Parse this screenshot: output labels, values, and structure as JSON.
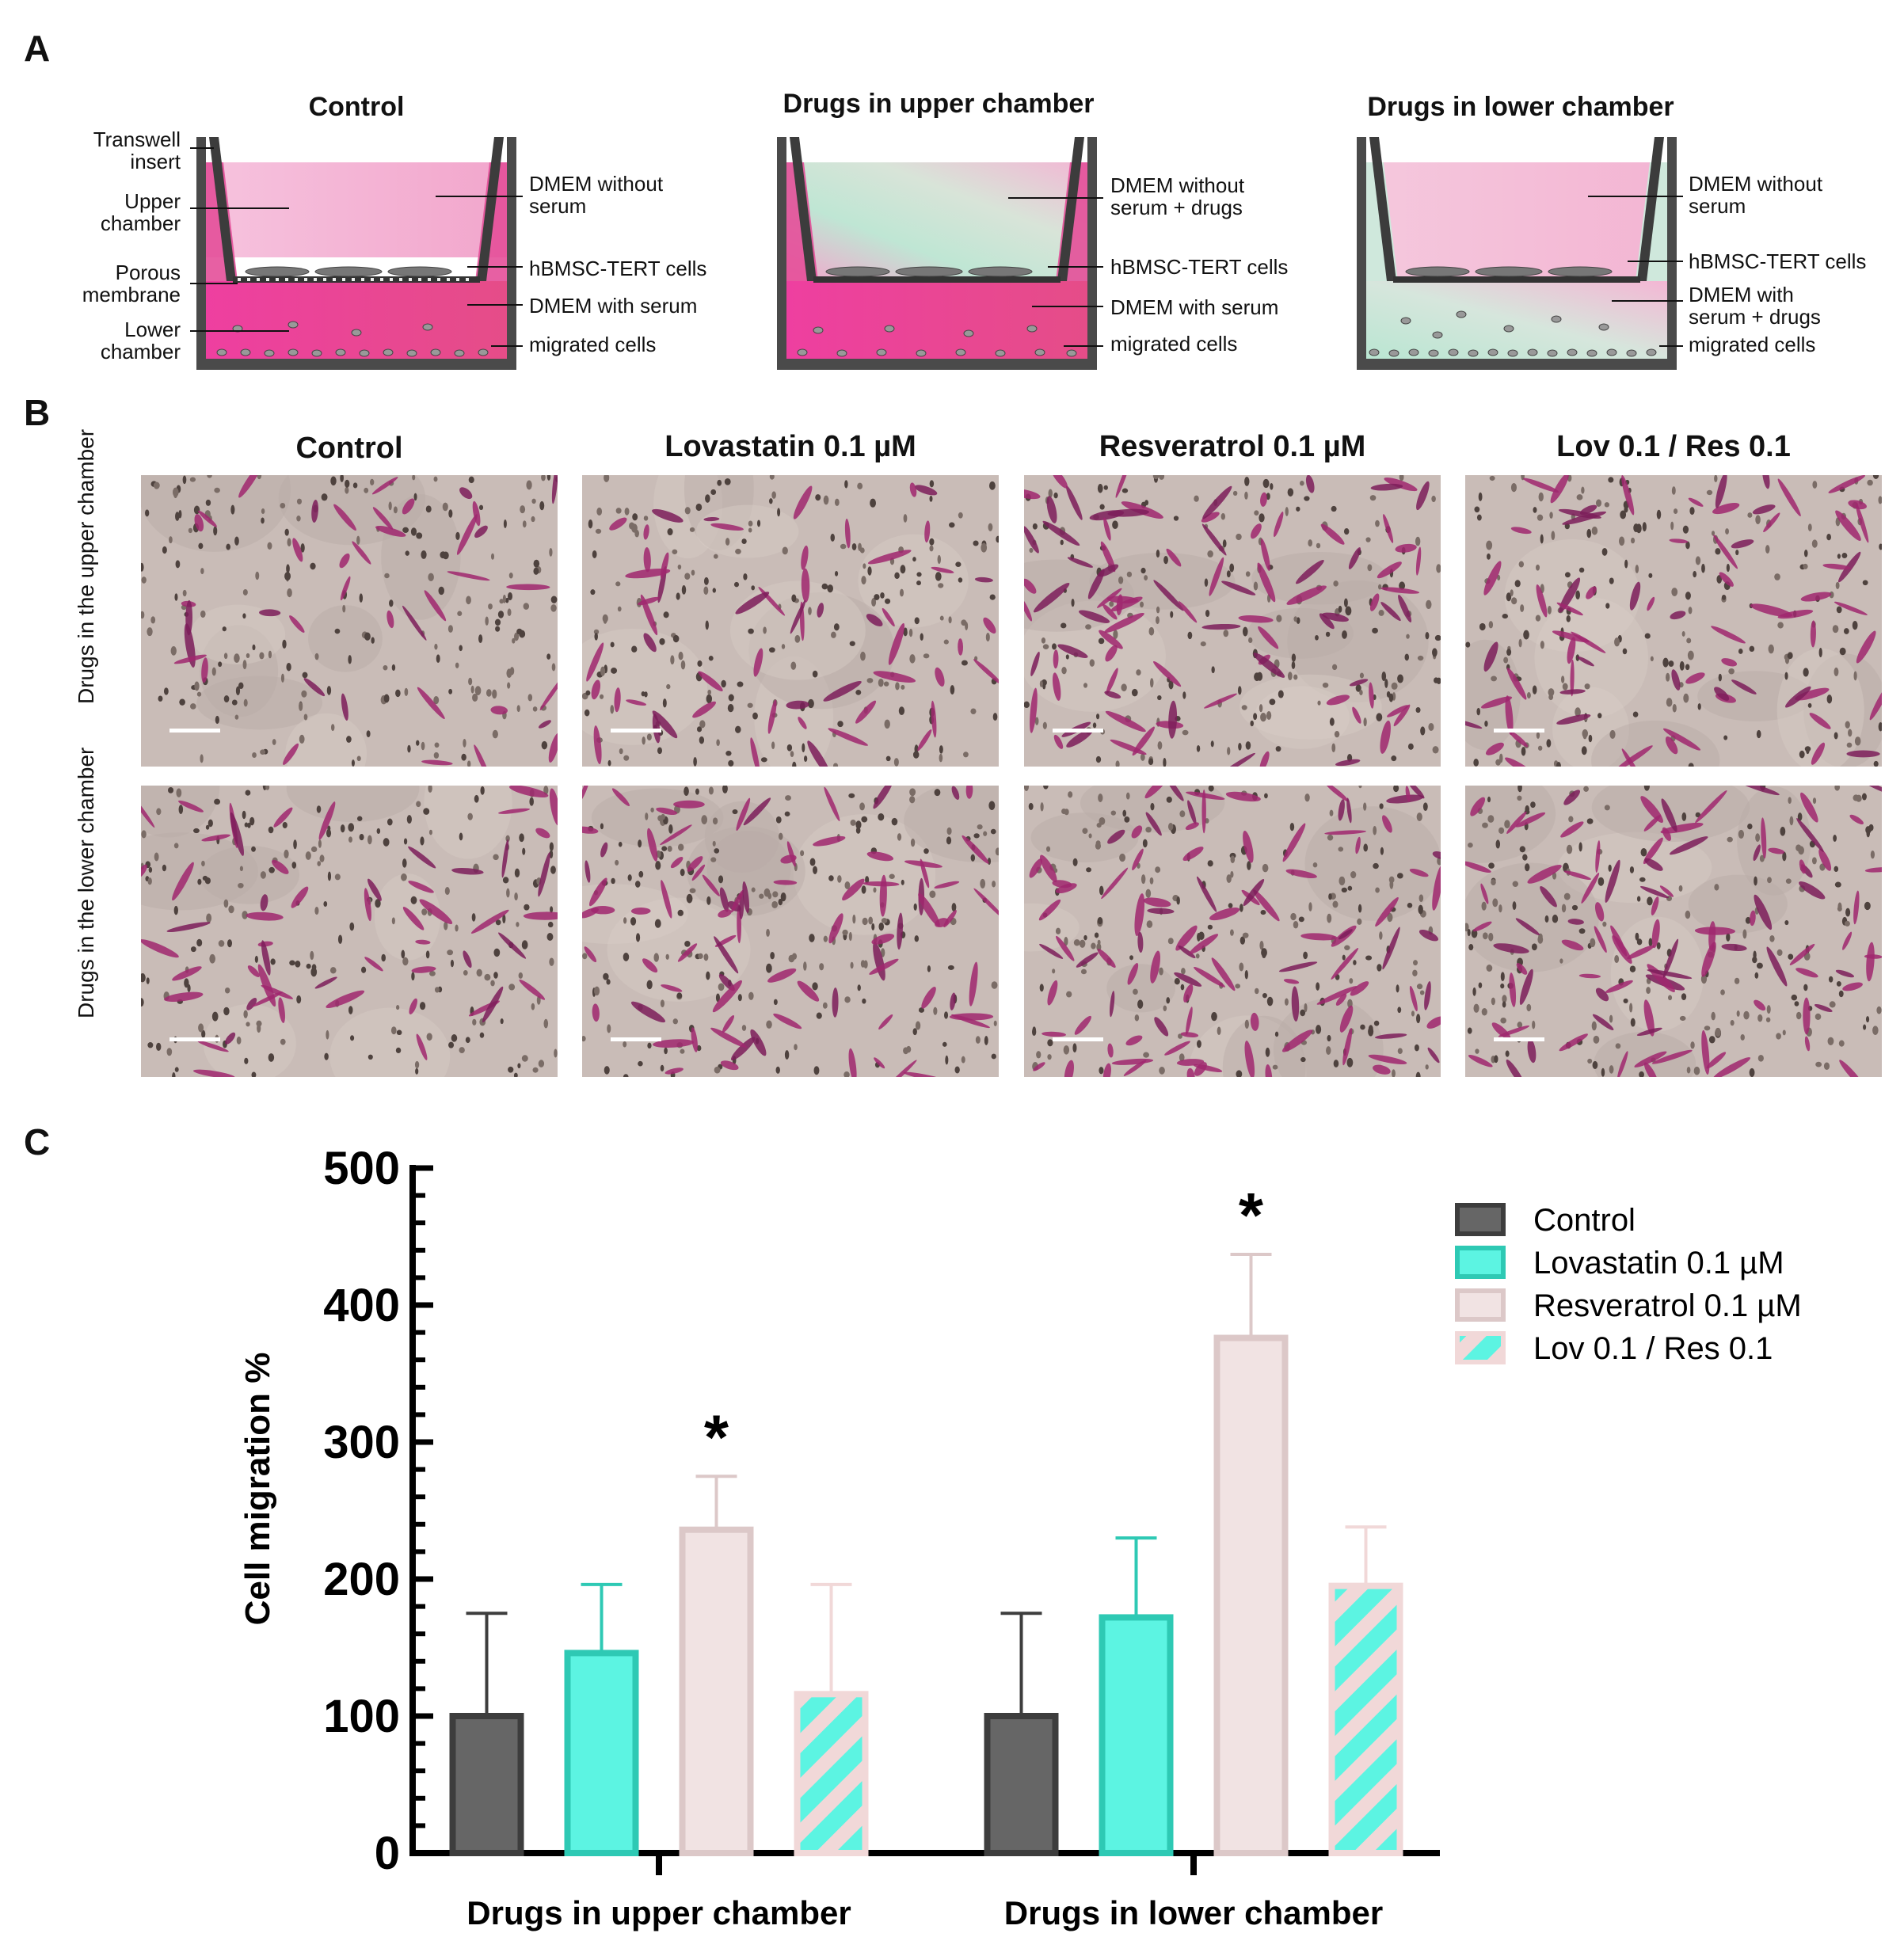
{
  "panels": {
    "a": {
      "letter": "A",
      "schematics": [
        {
          "title": "Control",
          "left_labels": [
            "Transwell insert",
            "Upper chamber",
            "Porous membrane",
            "Lower chamber"
          ],
          "right_labels": [
            "DMEM without serum",
            "hBMSC-TERT cells",
            "DMEM with serum",
            "migrated cells"
          ]
        },
        {
          "title": "Drugs in upper chamber",
          "right_labels": [
            "DMEM without serum + drugs",
            "hBMSC-TERT cells",
            "DMEM with serum",
            "migrated cells"
          ]
        },
        {
          "title": "Drugs in lower chamber",
          "right_labels": [
            "DMEM without serum",
            "hBMSC-TERT cells",
            "DMEM with serum + drugs",
            "migrated cells"
          ]
        }
      ],
      "colors": {
        "pink": "#ec4fa6",
        "light_pink": "#f6c3de",
        "mint": "#b9e6d2",
        "wall": "#4a4a4a"
      }
    },
    "b": {
      "letter": "B",
      "columns": [
        "Control",
        "Lovastatin 0.1 µM",
        "Resveratrol 0.1 µM",
        "Lov 0.1 / Res 0.1"
      ],
      "rows": [
        "Drugs in the upper chamber",
        "Drugs in the lower chamber"
      ]
    },
    "c": {
      "letter": "C"
    }
  },
  "chart_data": {
    "type": "bar",
    "ylabel": "Cell migration %",
    "xlabel": "",
    "ylim": [
      0,
      500
    ],
    "yticks": [
      0,
      100,
      200,
      300,
      400,
      500
    ],
    "categories": [
      "Drugs in upper chamber",
      "Drugs in lower chamber"
    ],
    "series": [
      {
        "name": "Control",
        "values": [
          100,
          100
        ],
        "errors": [
          75,
          75
        ],
        "fill": "#666666",
        "stroke": "#3d3d3d",
        "pattern": "solid"
      },
      {
        "name": "Lovastatin  0.1 µM",
        "values": [
          146,
          172
        ],
        "errors": [
          50,
          58
        ],
        "fill": "#5cf4e2",
        "stroke": "#2ec9b4",
        "pattern": "solid"
      },
      {
        "name": "Resveratrol 0.1 µM",
        "values": [
          236,
          376
        ],
        "errors": [
          39,
          61
        ],
        "fill": "#f1e3e3",
        "stroke": "#dcc8c8",
        "pattern": "solid"
      },
      {
        "name": "Lov 0.1 / Res 0.1",
        "values": [
          116,
          195
        ],
        "errors": [
          80,
          43
        ],
        "fill": "#5cf4e2",
        "stroke": "#f1d8d8",
        "pattern": "hatch"
      }
    ],
    "significance": [
      {
        "category": "Drugs in upper chamber",
        "series": "Resveratrol 0.1 µM",
        "mark": "*"
      },
      {
        "category": "Drugs in lower chamber",
        "series": "Resveratrol 0.1 µM",
        "mark": "*"
      }
    ],
    "legend_position": "top-right"
  }
}
